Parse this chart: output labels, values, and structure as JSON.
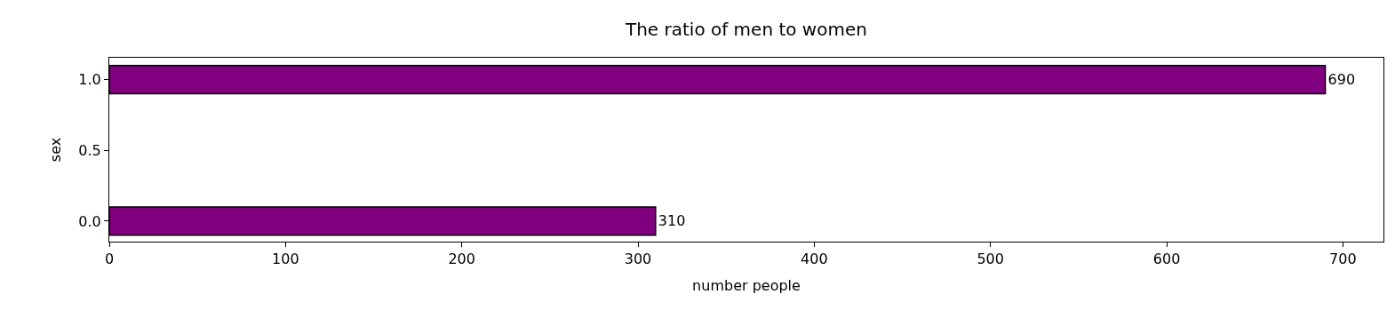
{
  "chart_data": {
    "type": "bar",
    "orientation": "horizontal",
    "title": "The ratio of men to women",
    "xlabel": "number people",
    "ylabel": "sex",
    "x": [
      0,
      1
    ],
    "values": [
      310,
      690
    ],
    "color": "#800080",
    "data_labels": true,
    "legend": false,
    "xlim": [
      0,
      723
    ],
    "xticks": [
      0,
      100,
      200,
      300,
      400,
      500,
      600,
      700
    ],
    "ylim": [
      -0.145,
      1.155
    ],
    "yticks": [
      {
        "value": 0,
        "label": "0.0"
      },
      {
        "value": 0.5,
        "label": "0.5"
      },
      {
        "value": 1,
        "label": "1.0"
      }
    ]
  }
}
